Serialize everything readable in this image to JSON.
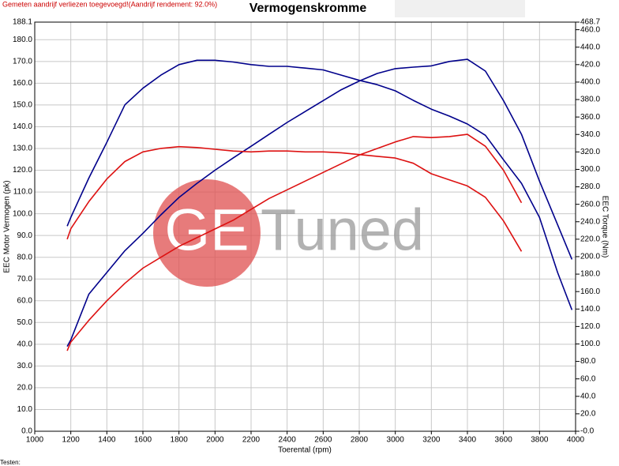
{
  "chart_data": {
    "type": "line",
    "title": "Vermogenskromme",
    "note": "Gemeten aandrijf verliezen toegevoegd!(Aandrijf rendement: 92.0%)",
    "footer": "Testen:",
    "watermark": [
      "GE",
      "Tuned"
    ],
    "x_label": "Toerental (rpm)",
    "y_label": "EEC Motor Vermogen (pk)",
    "y2_label": "EEC Torque (Nm)",
    "grid": true,
    "xlim": [
      1000,
      4000
    ],
    "xticks": [
      1000,
      1200,
      1400,
      1600,
      1800,
      2000,
      2200,
      2400,
      2600,
      2800,
      3000,
      3200,
      3400,
      3600,
      3800,
      4000
    ],
    "ylim": [
      0,
      188.1
    ],
    "yticks": [
      {
        "value": 0,
        "label": "0.0"
      },
      {
        "value": 10,
        "label": "10.0"
      },
      {
        "value": 20,
        "label": "20.0"
      },
      {
        "value": 30,
        "label": "30.0"
      },
      {
        "value": 40,
        "label": "40.0"
      },
      {
        "value": 50,
        "label": "50.0"
      },
      {
        "value": 60,
        "label": "60.0"
      },
      {
        "value": 70,
        "label": "70.0"
      },
      {
        "value": 80,
        "label": "80.0"
      },
      {
        "value": 90,
        "label": "90.0"
      },
      {
        "value": 100,
        "label": "100.0"
      },
      {
        "value": 110,
        "label": "110.0"
      },
      {
        "value": 120,
        "label": "120.0"
      },
      {
        "value": 130,
        "label": "130.0"
      },
      {
        "value": 140,
        "label": "140.0"
      },
      {
        "value": 150,
        "label": "150.0"
      },
      {
        "value": 160,
        "label": "160.0"
      },
      {
        "value": 170,
        "label": "170.0"
      },
      {
        "value": 180,
        "label": "180.0"
      },
      188.1
    ],
    "y2lim": [
      0,
      468.7
    ],
    "y2ticks": [
      {
        "value": 0,
        "label": "-0.0"
      },
      {
        "value": 20,
        "label": "20.0"
      },
      {
        "value": 40,
        "label": "40.0"
      },
      {
        "value": 60,
        "label": "60.0"
      },
      {
        "value": 80,
        "label": "80.0"
      },
      {
        "value": 100,
        "label": "100.0"
      },
      {
        "value": 120,
        "label": "120.0"
      },
      {
        "value": 140,
        "label": "140.0"
      },
      {
        "value": 160,
        "label": "160.0"
      },
      {
        "value": 180,
        "label": "180.0"
      },
      {
        "value": 200,
        "label": "200.0"
      },
      {
        "value": 220,
        "label": "220.0"
      },
      {
        "value": 240,
        "label": "240.0"
      },
      {
        "value": 260,
        "label": "260.0"
      },
      {
        "value": 280,
        "label": "280.0"
      },
      {
        "value": 300,
        "label": "300.0"
      },
      {
        "value": 320,
        "label": "320.0"
      },
      {
        "value": 340,
        "label": "340.0"
      },
      {
        "value": 360,
        "label": "360.0"
      },
      {
        "value": 380,
        "label": "380.0"
      },
      {
        "value": 400,
        "label": "400.0"
      },
      {
        "value": 420,
        "label": "420.0"
      },
      {
        "value": 440,
        "label": "440.0"
      },
      {
        "value": 460,
        "label": "460.0"
      },
      468.7
    ],
    "x": [
      1180,
      1200,
      1300,
      1400,
      1500,
      1600,
      1700,
      1800,
      1900,
      2000,
      2100,
      2200,
      2300,
      2400,
      2500,
      2600,
      2700,
      2800,
      2900,
      3000,
      3100,
      3200,
      3300,
      3400,
      3500,
      3600,
      3700,
      3800,
      3900,
      3980
    ],
    "series": [
      {
        "color": "#00008b",
        "axis": "y",
        "values": [
          39,
          42,
          63,
          73,
          83,
          91,
          99.5,
          107.5,
          114,
          120,
          125.6,
          131,
          136.5,
          142,
          147,
          152,
          157,
          161,
          164.5,
          166.7,
          167.4,
          168,
          170,
          171,
          165.6,
          152,
          136.5,
          115,
          95,
          79
        ]
      },
      {
        "color": "#dd1111",
        "axis": "y",
        "values": [
          37,
          41,
          51,
          60,
          68,
          75,
          80,
          85,
          89,
          93,
          97,
          102,
          107,
          111,
          115,
          119,
          123,
          127,
          130,
          133,
          135.5,
          135,
          135.5,
          136.5,
          131,
          120,
          105,
          null,
          null,
          null
        ]
      },
      {
        "color": "#00008b",
        "axis": "y2",
        "values": [
          235,
          245,
          290,
          331,
          374,
          393,
          408,
          420,
          425,
          425,
          423,
          420,
          418,
          418,
          416,
          414,
          408,
          402,
          397,
          390,
          379,
          369,
          361,
          352,
          339,
          311,
          284,
          245,
          182,
          139
        ]
      },
      {
        "color": "#dd1111",
        "axis": "y2",
        "values": [
          220,
          232,
          263,
          289,
          309,
          320,
          324,
          326,
          325,
          323,
          321,
          320,
          321,
          321,
          320,
          320,
          319,
          317,
          315,
          313,
          307,
          295,
          288,
          281,
          268,
          241,
          206,
          null,
          null,
          null
        ]
      }
    ]
  }
}
